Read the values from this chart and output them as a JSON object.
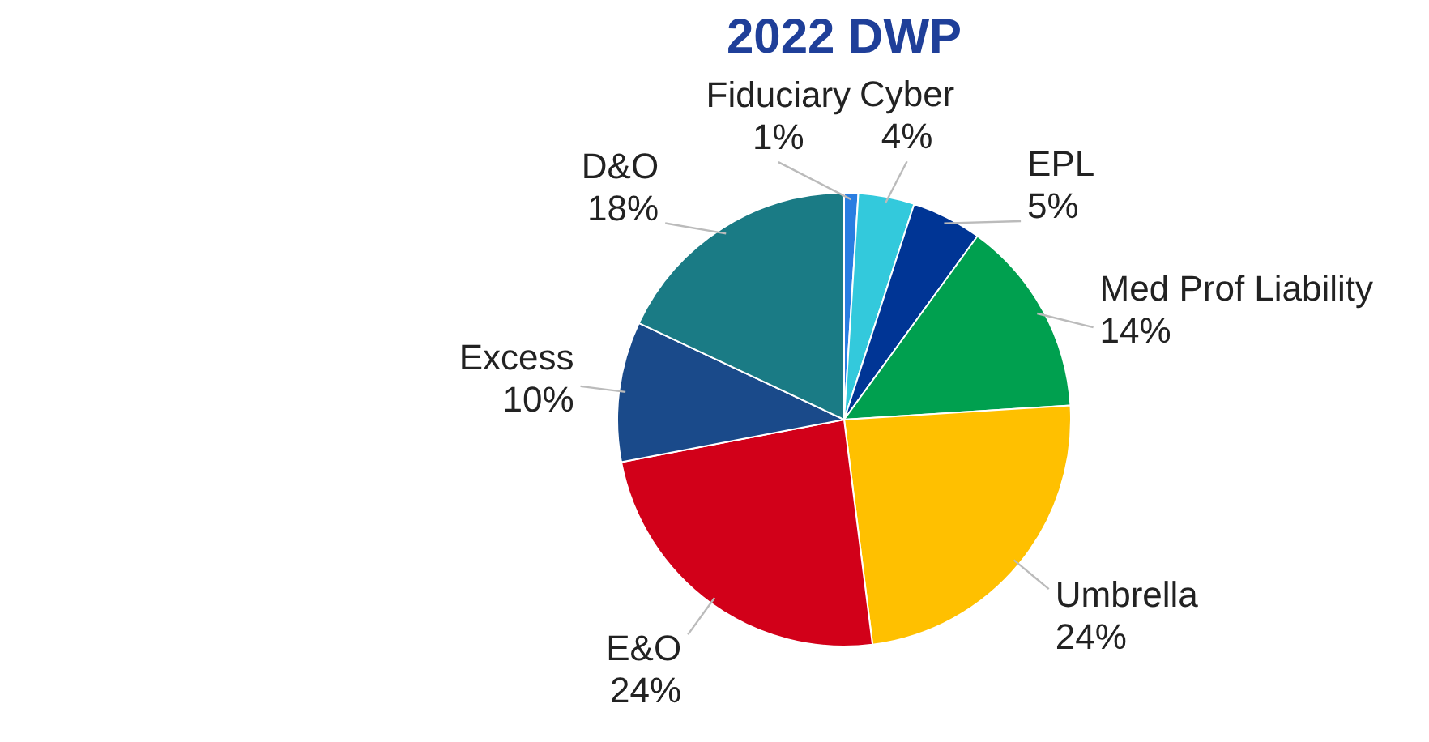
{
  "chart_data": {
    "type": "pie",
    "title": "2022 DWP",
    "categories": [
      "Fiduciary",
      "Cyber",
      "EPL",
      "Med Prof Liability",
      "Umbrella",
      "E&O",
      "Excess",
      "D&O"
    ],
    "values": [
      1,
      4,
      5,
      14,
      24,
      24,
      10,
      18
    ],
    "colors": [
      "#2a7de1",
      "#33c9dc",
      "#003595",
      "#00a04f",
      "#ffc000",
      "#d20019",
      "#1a4a8a",
      "#1a7b85"
    ],
    "value_labels": [
      "1%",
      "4%",
      "5%",
      "14%",
      "24%",
      "24%",
      "10%",
      "18%"
    ],
    "legend": false
  }
}
